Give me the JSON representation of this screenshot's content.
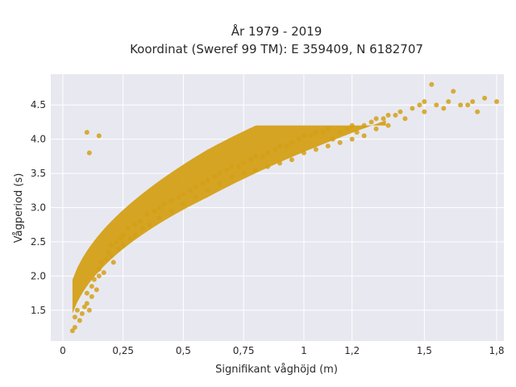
{
  "chart_data": {
    "type": "scatter",
    "title_line1": "År 1979 - 2019",
    "title_line2": "Koordinat (Sweref 99 TM): E 359409, N 6182707",
    "xlabel": "Signifikant våghöjd (m)",
    "ylabel": "Vågperiod (s)",
    "xlim": [
      -0.05,
      1.83
    ],
    "ylim": [
      1.05,
      4.95
    ],
    "x_ticks": [
      {
        "value": 0,
        "label": "0"
      },
      {
        "value": 0.25,
        "label": "0,25"
      },
      {
        "value": 0.5,
        "label": "0,5"
      },
      {
        "value": 0.75,
        "label": "0,75"
      },
      {
        "value": 1,
        "label": "1"
      },
      {
        "value": 1.2,
        "label": "1,2"
      },
      {
        "value": 1.5,
        "label": "1,5"
      },
      {
        "value": 1.8,
        "label": "1,8"
      }
    ],
    "y_ticks": [
      {
        "value": 1.5,
        "label": "1.5"
      },
      {
        "value": 2.0,
        "label": "2.0"
      },
      {
        "value": 2.5,
        "label": "2.5"
      },
      {
        "value": 3.0,
        "label": "3.0"
      },
      {
        "value": 3.5,
        "label": "3.5"
      },
      {
        "value": 4.0,
        "label": "4.0"
      },
      {
        "value": 4.5,
        "label": "4.5"
      }
    ],
    "grid": true,
    "marker_color": "#d4a017",
    "plot_background": "#e8e8f0",
    "series": [
      {
        "points": [
          [
            0.04,
            1.2
          ],
          [
            0.05,
            1.25
          ],
          [
            0.05,
            1.4
          ],
          [
            0.06,
            1.5
          ],
          [
            0.07,
            1.35
          ],
          [
            0.08,
            1.45
          ],
          [
            0.09,
            1.55
          ],
          [
            0.1,
            1.6
          ],
          [
            0.1,
            1.75
          ],
          [
            0.11,
            1.5
          ],
          [
            0.12,
            1.7
          ],
          [
            0.12,
            1.85
          ],
          [
            0.13,
            1.95
          ],
          [
            0.14,
            1.8
          ],
          [
            0.15,
            2.0
          ],
          [
            0.15,
            2.1
          ],
          [
            0.16,
            2.2
          ],
          [
            0.17,
            2.05
          ],
          [
            0.18,
            2.25
          ],
          [
            0.19,
            2.35
          ],
          [
            0.2,
            2.3
          ],
          [
            0.2,
            2.45
          ],
          [
            0.21,
            2.2
          ],
          [
            0.22,
            2.5
          ],
          [
            0.23,
            2.4
          ],
          [
            0.24,
            2.55
          ],
          [
            0.25,
            2.6
          ],
          [
            0.25,
            2.45
          ],
          [
            0.27,
            2.7
          ],
          [
            0.28,
            2.55
          ],
          [
            0.3,
            2.75
          ],
          [
            0.3,
            2.6
          ],
          [
            0.32,
            2.8
          ],
          [
            0.33,
            2.7
          ],
          [
            0.35,
            2.9
          ],
          [
            0.36,
            2.75
          ],
          [
            0.38,
            2.95
          ],
          [
            0.4,
            3.0
          ],
          [
            0.4,
            2.85
          ],
          [
            0.42,
            3.05
          ],
          [
            0.45,
            3.1
          ],
          [
            0.45,
            2.95
          ],
          [
            0.48,
            3.15
          ],
          [
            0.5,
            3.2
          ],
          [
            0.5,
            3.05
          ],
          [
            0.53,
            3.25
          ],
          [
            0.55,
            3.3
          ],
          [
            0.55,
            3.15
          ],
          [
            0.58,
            3.35
          ],
          [
            0.6,
            3.4
          ],
          [
            0.6,
            3.25
          ],
          [
            0.63,
            3.45
          ],
          [
            0.65,
            3.5
          ],
          [
            0.65,
            3.35
          ],
          [
            0.68,
            3.55
          ],
          [
            0.7,
            3.6
          ],
          [
            0.7,
            3.45
          ],
          [
            0.73,
            3.6
          ],
          [
            0.75,
            3.65
          ],
          [
            0.75,
            3.5
          ],
          [
            0.78,
            3.7
          ],
          [
            0.8,
            3.75
          ],
          [
            0.8,
            3.55
          ],
          [
            0.83,
            3.75
          ],
          [
            0.85,
            3.8
          ],
          [
            0.85,
            3.6
          ],
          [
            0.88,
            3.85
          ],
          [
            0.9,
            3.9
          ],
          [
            0.9,
            3.65
          ],
          [
            0.93,
            3.9
          ],
          [
            0.95,
            3.95
          ],
          [
            0.95,
            3.7
          ],
          [
            0.98,
            4.0
          ],
          [
            1.0,
            4.05
          ],
          [
            1.0,
            3.8
          ],
          [
            1.03,
            4.05
          ],
          [
            1.05,
            4.1
          ],
          [
            1.05,
            3.85
          ],
          [
            1.08,
            4.1
          ],
          [
            1.1,
            4.15
          ],
          [
            1.1,
            3.9
          ],
          [
            1.12,
            4.0
          ],
          [
            1.15,
            4.1
          ],
          [
            1.15,
            3.95
          ],
          [
            1.18,
            4.15
          ],
          [
            1.2,
            4.2
          ],
          [
            1.2,
            4.0
          ],
          [
            1.22,
            4.1
          ],
          [
            1.25,
            4.2
          ],
          [
            1.25,
            4.05
          ],
          [
            1.28,
            4.25
          ],
          [
            1.3,
            4.3
          ],
          [
            1.3,
            4.15
          ],
          [
            1.33,
            4.3
          ],
          [
            1.35,
            4.35
          ],
          [
            1.35,
            4.2
          ],
          [
            1.38,
            4.35
          ],
          [
            1.4,
            4.4
          ],
          [
            1.42,
            4.3
          ],
          [
            1.45,
            4.45
          ],
          [
            1.48,
            4.5
          ],
          [
            1.5,
            4.4
          ],
          [
            1.5,
            4.55
          ],
          [
            1.53,
            4.8
          ],
          [
            1.55,
            4.5
          ],
          [
            1.58,
            4.45
          ],
          [
            1.6,
            4.55
          ],
          [
            1.62,
            4.7
          ],
          [
            1.65,
            4.5
          ],
          [
            1.68,
            4.5
          ],
          [
            1.7,
            4.55
          ],
          [
            1.72,
            4.4
          ],
          [
            1.75,
            4.6
          ],
          [
            1.8,
            4.55
          ],
          [
            0.1,
            4.1
          ],
          [
            0.11,
            3.8
          ],
          [
            0.15,
            4.05
          ]
        ]
      }
    ]
  }
}
